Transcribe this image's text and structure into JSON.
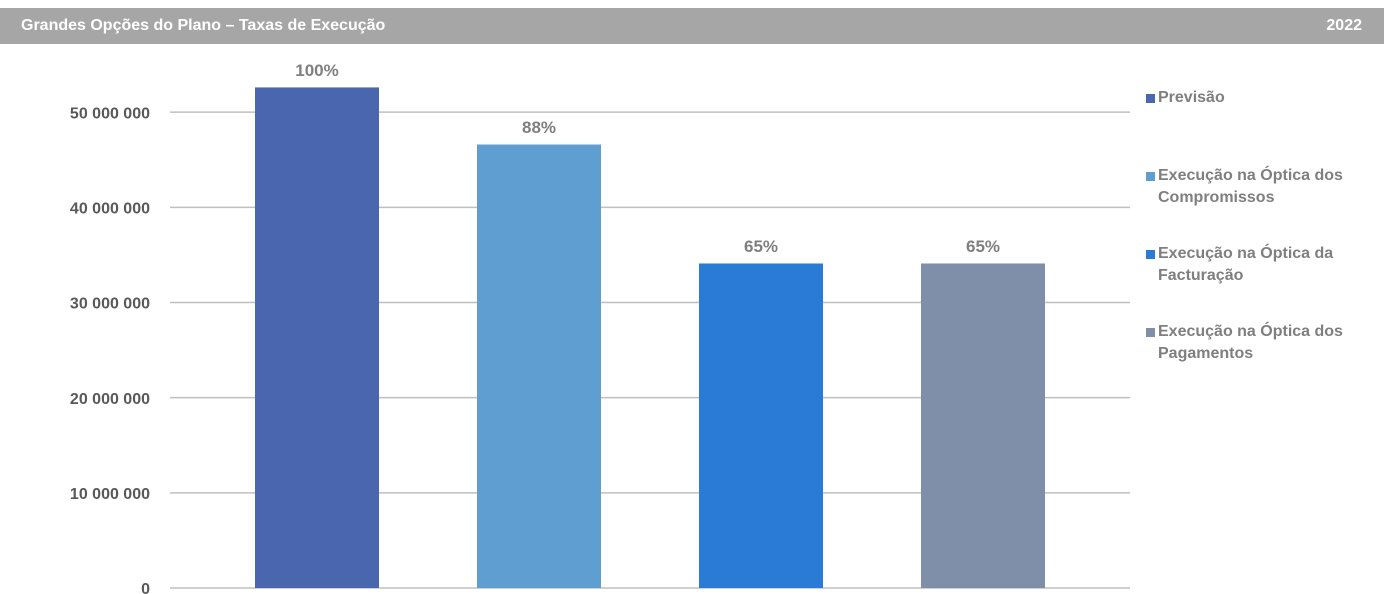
{
  "chart_data": {
    "type": "bar",
    "title": "Grandes Opções do Plano – Taxas de Execução",
    "subtitle": "2022",
    "categories": [
      null
    ],
    "series": [
      {
        "name": "Previsão",
        "color": "#4a66ae",
        "values": [
          52600000
        ]
      },
      {
        "name": "Execução na Óptica dos Compromissos",
        "color": "#5f9ed1",
        "values": [
          46600000
        ]
      },
      {
        "name": "Execução na Óptica da Facturação",
        "color": "#2a7bd6",
        "values": [
          34100000
        ]
      },
      {
        "name": "Execução na Óptica dos Pagamentos",
        "color": "#7f8fa9",
        "values": [
          34100000
        ]
      }
    ],
    "rate_labels": [
      "100%",
      "88%",
      "65%",
      "65%"
    ],
    "ylim": [
      0,
      60000000
    ],
    "yticks": [
      0,
      {
        "value": 10000000,
        "label": "10 000 000"
      },
      {
        "value": 20000000,
        "label": "20 000 000"
      },
      {
        "value": 30000000,
        "label": "30 000 000"
      },
      {
        "value": 40000000,
        "label": "40 000 000"
      },
      {
        "value": 50000000,
        "label": "50 000 000"
      }
    ],
    "grid": true,
    "legend": "right"
  }
}
